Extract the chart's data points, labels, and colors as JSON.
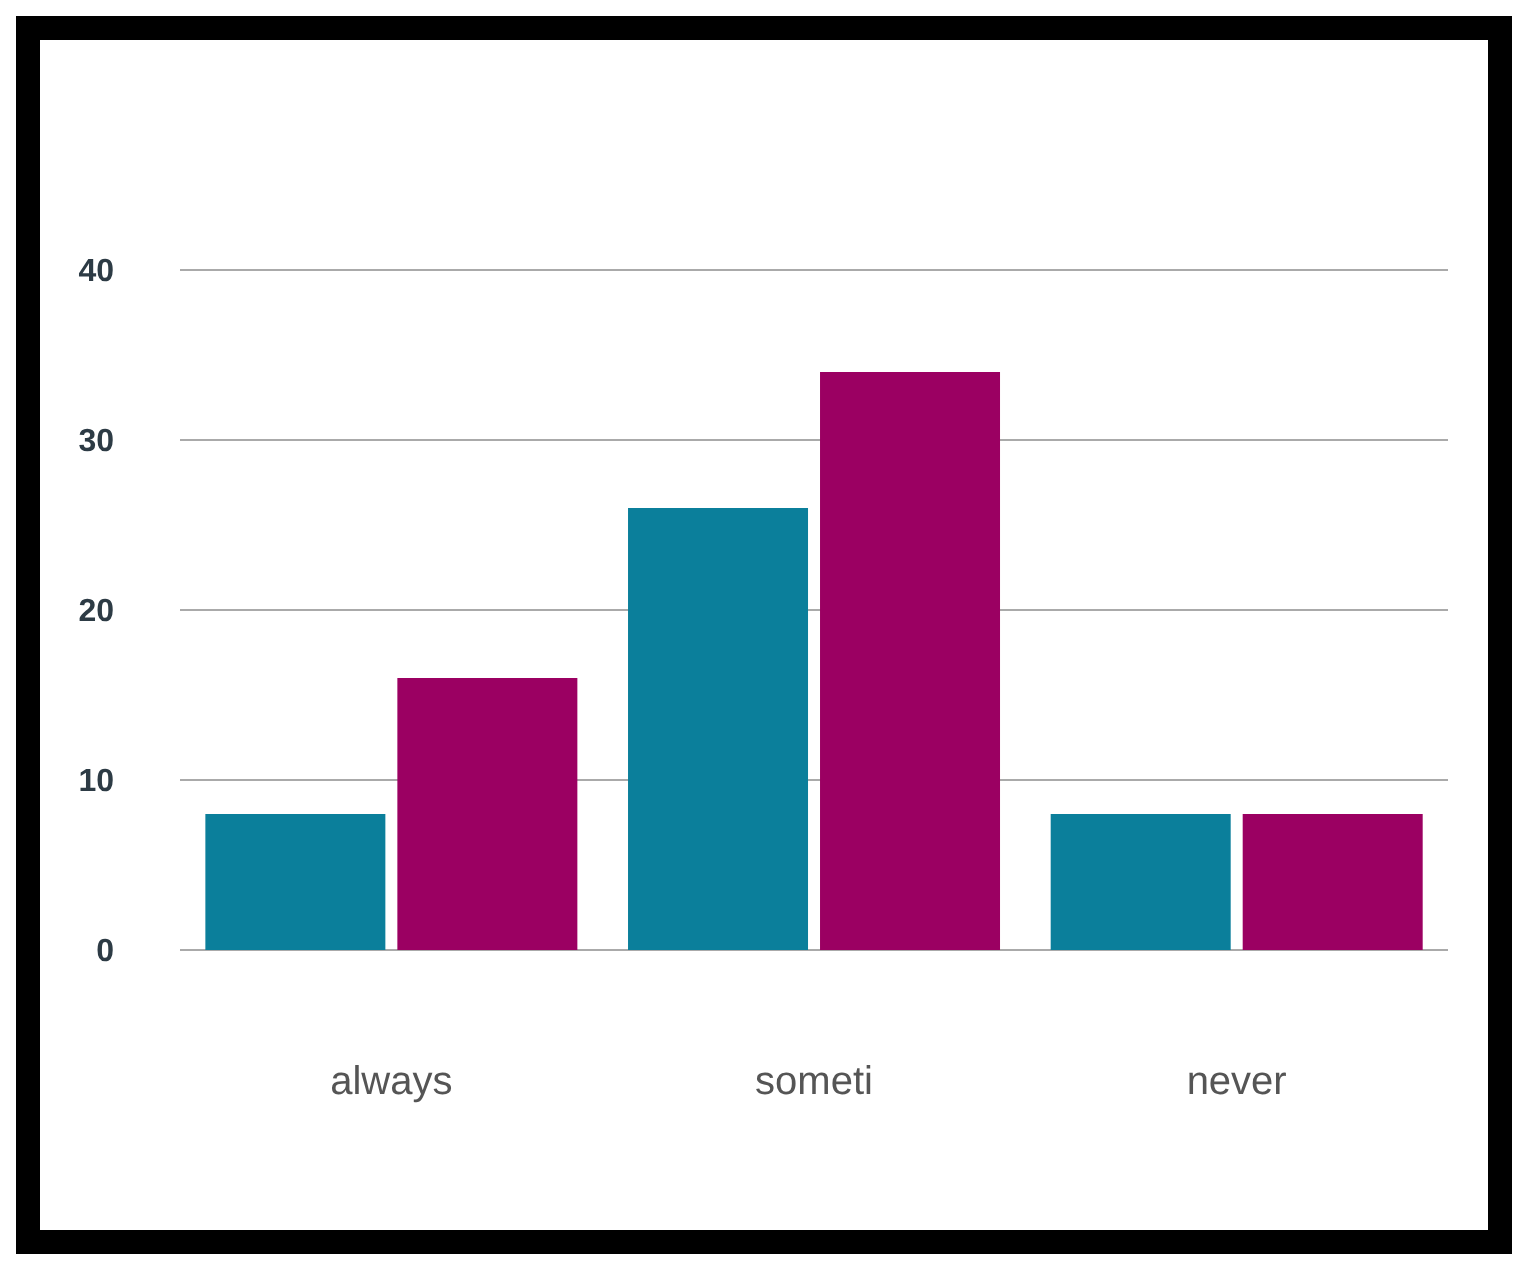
{
  "chart_data": {
    "type": "bar",
    "categories": [
      "always",
      "someti",
      "never"
    ],
    "series": [
      {
        "color": "#0b7f9b",
        "values": [
          8,
          26,
          8
        ]
      },
      {
        "color": "#9b0062",
        "values": [
          16,
          34,
          8
        ]
      }
    ],
    "ylim": [
      0,
      40
    ],
    "yticks": [
      0,
      10,
      20,
      30,
      40
    ],
    "grid": "y",
    "legend": false
  }
}
